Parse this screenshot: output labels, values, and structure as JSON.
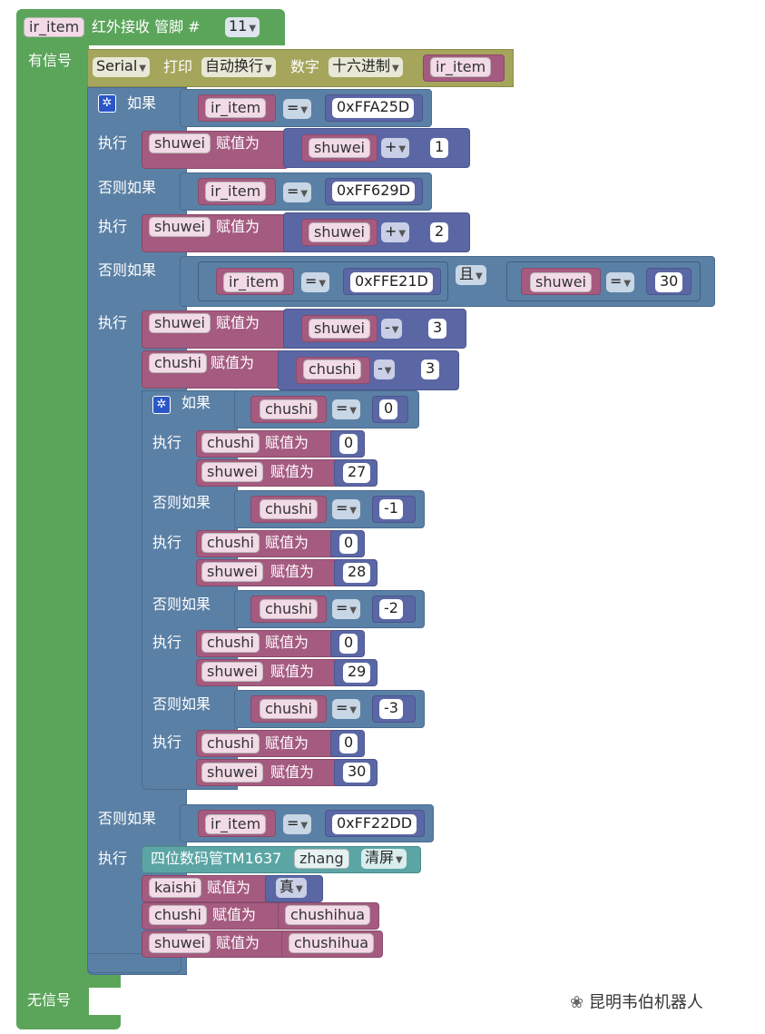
{
  "main": {
    "var_ir": "ir_item",
    "ir_title": "红外接收 管脚 #",
    "pin": "11",
    "has_signal": "有信号",
    "no_signal": "无信号"
  },
  "serial": {
    "port": "Serial",
    "print": "打印",
    "mode": "自动换行",
    "number": "数字",
    "base": "十六进制",
    "var": "ir_item"
  },
  "labels": {
    "if": "如果",
    "do": "执行",
    "elseif": "否则如果",
    "assign": "赋值为",
    "and": "且",
    "eq": "=",
    "plus": "+",
    "minus": "-"
  },
  "vars": {
    "shuwei": "shuwei",
    "chushi": "chushi",
    "kaishi": "kaishi",
    "chushihua": "chushihua"
  },
  "codes": {
    "c1": "0xFFA25D",
    "c2": "0xFF629D",
    "c3": "0xFFE21D",
    "c4": "0xFF22DD"
  },
  "nums": {
    "n1": "1",
    "n2": "2",
    "n30": "30",
    "n3": "3",
    "n0": "0",
    "n27": "27",
    "nm1": "-1",
    "n28": "28",
    "nm2": "-2",
    "n29": "29",
    "nm3": "-3"
  },
  "tm": {
    "title": "四位数码管TM1637",
    "name": "zhang",
    "clear": "清屏",
    "true": "真"
  },
  "watermark": "昆明韦伯机器人"
}
